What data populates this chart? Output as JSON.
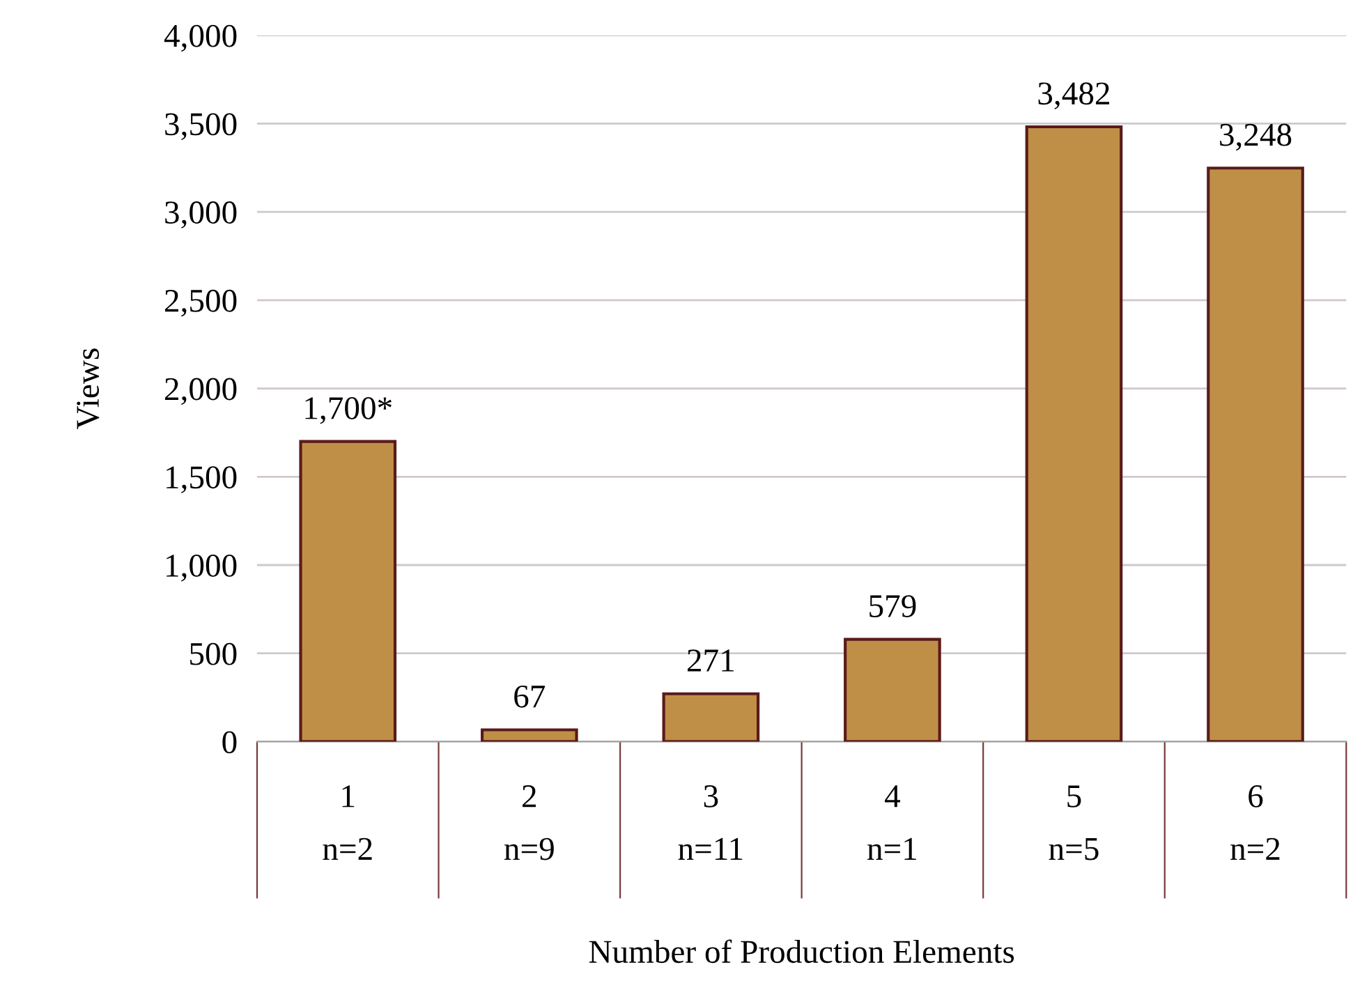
{
  "chart_data": {
    "type": "bar",
    "xlabel": "Number of Production Elements",
    "ylabel": "Views",
    "categories": [
      "1\nn=2",
      "2\nn=9",
      "3\nn=11",
      "4\nn=1",
      "5\nn=5",
      "6\nn=2"
    ],
    "values": [
      1700,
      67,
      271,
      579,
      3482,
      3248
    ],
    "value_labels": [
      "1,700*",
      "67",
      "271",
      "579",
      "3,482",
      "3,248"
    ],
    "color": "#bf8f47",
    "ylim": [
      0,
      4000
    ],
    "yticks": [
      {
        "value": 0,
        "label": "0"
      },
      {
        "value": 500,
        "label": "500"
      },
      {
        "value": 1000,
        "label": "1,000"
      },
      {
        "value": 1500,
        "label": "1,500"
      },
      {
        "value": 2000,
        "label": "2,000"
      },
      {
        "value": 2500,
        "label": "2,500"
      },
      {
        "value": 3000,
        "label": "3,000"
      },
      {
        "value": 3500,
        "label": "3,500"
      },
      {
        "value": 4000,
        "label": "4,000"
      }
    ],
    "grid": "y",
    "legend": false
  }
}
